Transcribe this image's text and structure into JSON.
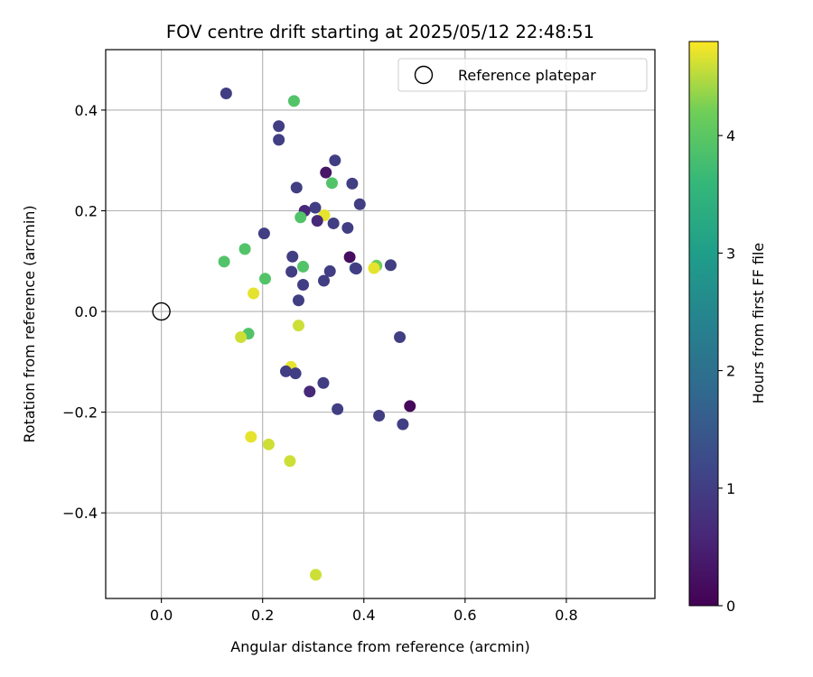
{
  "chart_data": {
    "type": "scatter",
    "title": "FOV centre drift starting at 2025/05/12 22:48:51",
    "xlabel": "Angular distance from reference (arcmin)",
    "ylabel": "Rotation from reference (arcmin)",
    "xlim": [
      -0.11,
      0.975
    ],
    "ylim": [
      -0.57,
      0.52
    ],
    "xticks": [
      0.0,
      0.2,
      0.4,
      0.6,
      0.8
    ],
    "xtick_labels": [
      "0.0",
      "0.2",
      "0.4",
      "0.6",
      "0.8"
    ],
    "yticks": [
      -0.4,
      -0.2,
      0.0,
      0.2,
      0.4
    ],
    "ytick_labels": [
      "−0.4",
      "−0.2",
      "0.0",
      "0.2",
      "0.4"
    ],
    "grid": true,
    "legend": {
      "position": "top-right",
      "entries": [
        {
          "label": "Reference platepar",
          "marker": "open-circle"
        }
      ]
    },
    "reference_point": {
      "x": 0.0,
      "y": 0.0
    },
    "colorbar": {
      "label": "Hours from first FF file",
      "colormap": "viridis",
      "min": 0,
      "max": 4.8,
      "ticks": [
        0,
        1,
        2,
        3,
        4
      ],
      "tick_labels": [
        "0",
        "1",
        "2",
        "3",
        "4"
      ]
    },
    "points": [
      {
        "x": 0.128,
        "y": 0.433,
        "t": 1.0
      },
      {
        "x": 0.262,
        "y": 0.418,
        "t": 3.9
      },
      {
        "x": 0.232,
        "y": 0.368,
        "t": 1.0
      },
      {
        "x": 0.232,
        "y": 0.341,
        "t": 1.0
      },
      {
        "x": 0.343,
        "y": 0.3,
        "t": 1.0
      },
      {
        "x": 0.325,
        "y": 0.276,
        "t": 0.3
      },
      {
        "x": 0.337,
        "y": 0.255,
        "t": 3.9
      },
      {
        "x": 0.377,
        "y": 0.254,
        "t": 1.0
      },
      {
        "x": 0.267,
        "y": 0.246,
        "t": 1.0
      },
      {
        "x": 0.392,
        "y": 0.213,
        "t": 1.0
      },
      {
        "x": 0.304,
        "y": 0.206,
        "t": 1.0
      },
      {
        "x": 0.283,
        "y": 0.2,
        "t": 0.6
      },
      {
        "x": 0.322,
        "y": 0.191,
        "t": 4.7
      },
      {
        "x": 0.275,
        "y": 0.187,
        "t": 3.9
      },
      {
        "x": 0.308,
        "y": 0.18,
        "t": 0.6
      },
      {
        "x": 0.34,
        "y": 0.175,
        "t": 1.0
      },
      {
        "x": 0.368,
        "y": 0.166,
        "t": 1.0
      },
      {
        "x": 0.203,
        "y": 0.155,
        "t": 1.0
      },
      {
        "x": 0.165,
        "y": 0.124,
        "t": 3.9
      },
      {
        "x": 0.259,
        "y": 0.109,
        "t": 1.0
      },
      {
        "x": 0.372,
        "y": 0.108,
        "t": 0.2
      },
      {
        "x": 0.124,
        "y": 0.099,
        "t": 3.9
      },
      {
        "x": 0.453,
        "y": 0.092,
        "t": 1.0
      },
      {
        "x": 0.425,
        "y": 0.091,
        "t": 4.2
      },
      {
        "x": 0.28,
        "y": 0.089,
        "t": 3.9
      },
      {
        "x": 0.42,
        "y": 0.086,
        "t": 4.7
      },
      {
        "x": 0.383,
        "y": 0.086,
        "t": 1.5
      },
      {
        "x": 0.385,
        "y": 0.085,
        "t": 1.0
      },
      {
        "x": 0.333,
        "y": 0.08,
        "t": 1.0
      },
      {
        "x": 0.257,
        "y": 0.079,
        "t": 1.0
      },
      {
        "x": 0.205,
        "y": 0.065,
        "t": 3.9
      },
      {
        "x": 0.321,
        "y": 0.061,
        "t": 1.0
      },
      {
        "x": 0.28,
        "y": 0.053,
        "t": 1.0
      },
      {
        "x": 0.182,
        "y": 0.036,
        "t": 4.7
      },
      {
        "x": 0.271,
        "y": 0.022,
        "t": 1.0
      },
      {
        "x": 0.271,
        "y": -0.028,
        "t": 4.6
      },
      {
        "x": 0.172,
        "y": -0.044,
        "t": 3.9
      },
      {
        "x": 0.157,
        "y": -0.051,
        "t": 4.6
      },
      {
        "x": 0.471,
        "y": -0.051,
        "t": 1.0
      },
      {
        "x": 0.256,
        "y": -0.11,
        "t": 4.7
      },
      {
        "x": 0.246,
        "y": -0.119,
        "t": 1.0
      },
      {
        "x": 0.265,
        "y": -0.123,
        "t": 1.0
      },
      {
        "x": 0.32,
        "y": -0.142,
        "t": 1.0
      },
      {
        "x": 0.293,
        "y": -0.159,
        "t": 0.6
      },
      {
        "x": 0.491,
        "y": -0.188,
        "t": 0.1
      },
      {
        "x": 0.348,
        "y": -0.194,
        "t": 1.0
      },
      {
        "x": 0.43,
        "y": -0.207,
        "t": 1.0
      },
      {
        "x": 0.477,
        "y": -0.224,
        "t": 1.0
      },
      {
        "x": 0.177,
        "y": -0.249,
        "t": 4.7
      },
      {
        "x": 0.212,
        "y": -0.264,
        "t": 4.6
      },
      {
        "x": 0.254,
        "y": -0.297,
        "t": 4.6
      },
      {
        "x": 0.305,
        "y": -0.523,
        "t": 4.6
      }
    ]
  }
}
